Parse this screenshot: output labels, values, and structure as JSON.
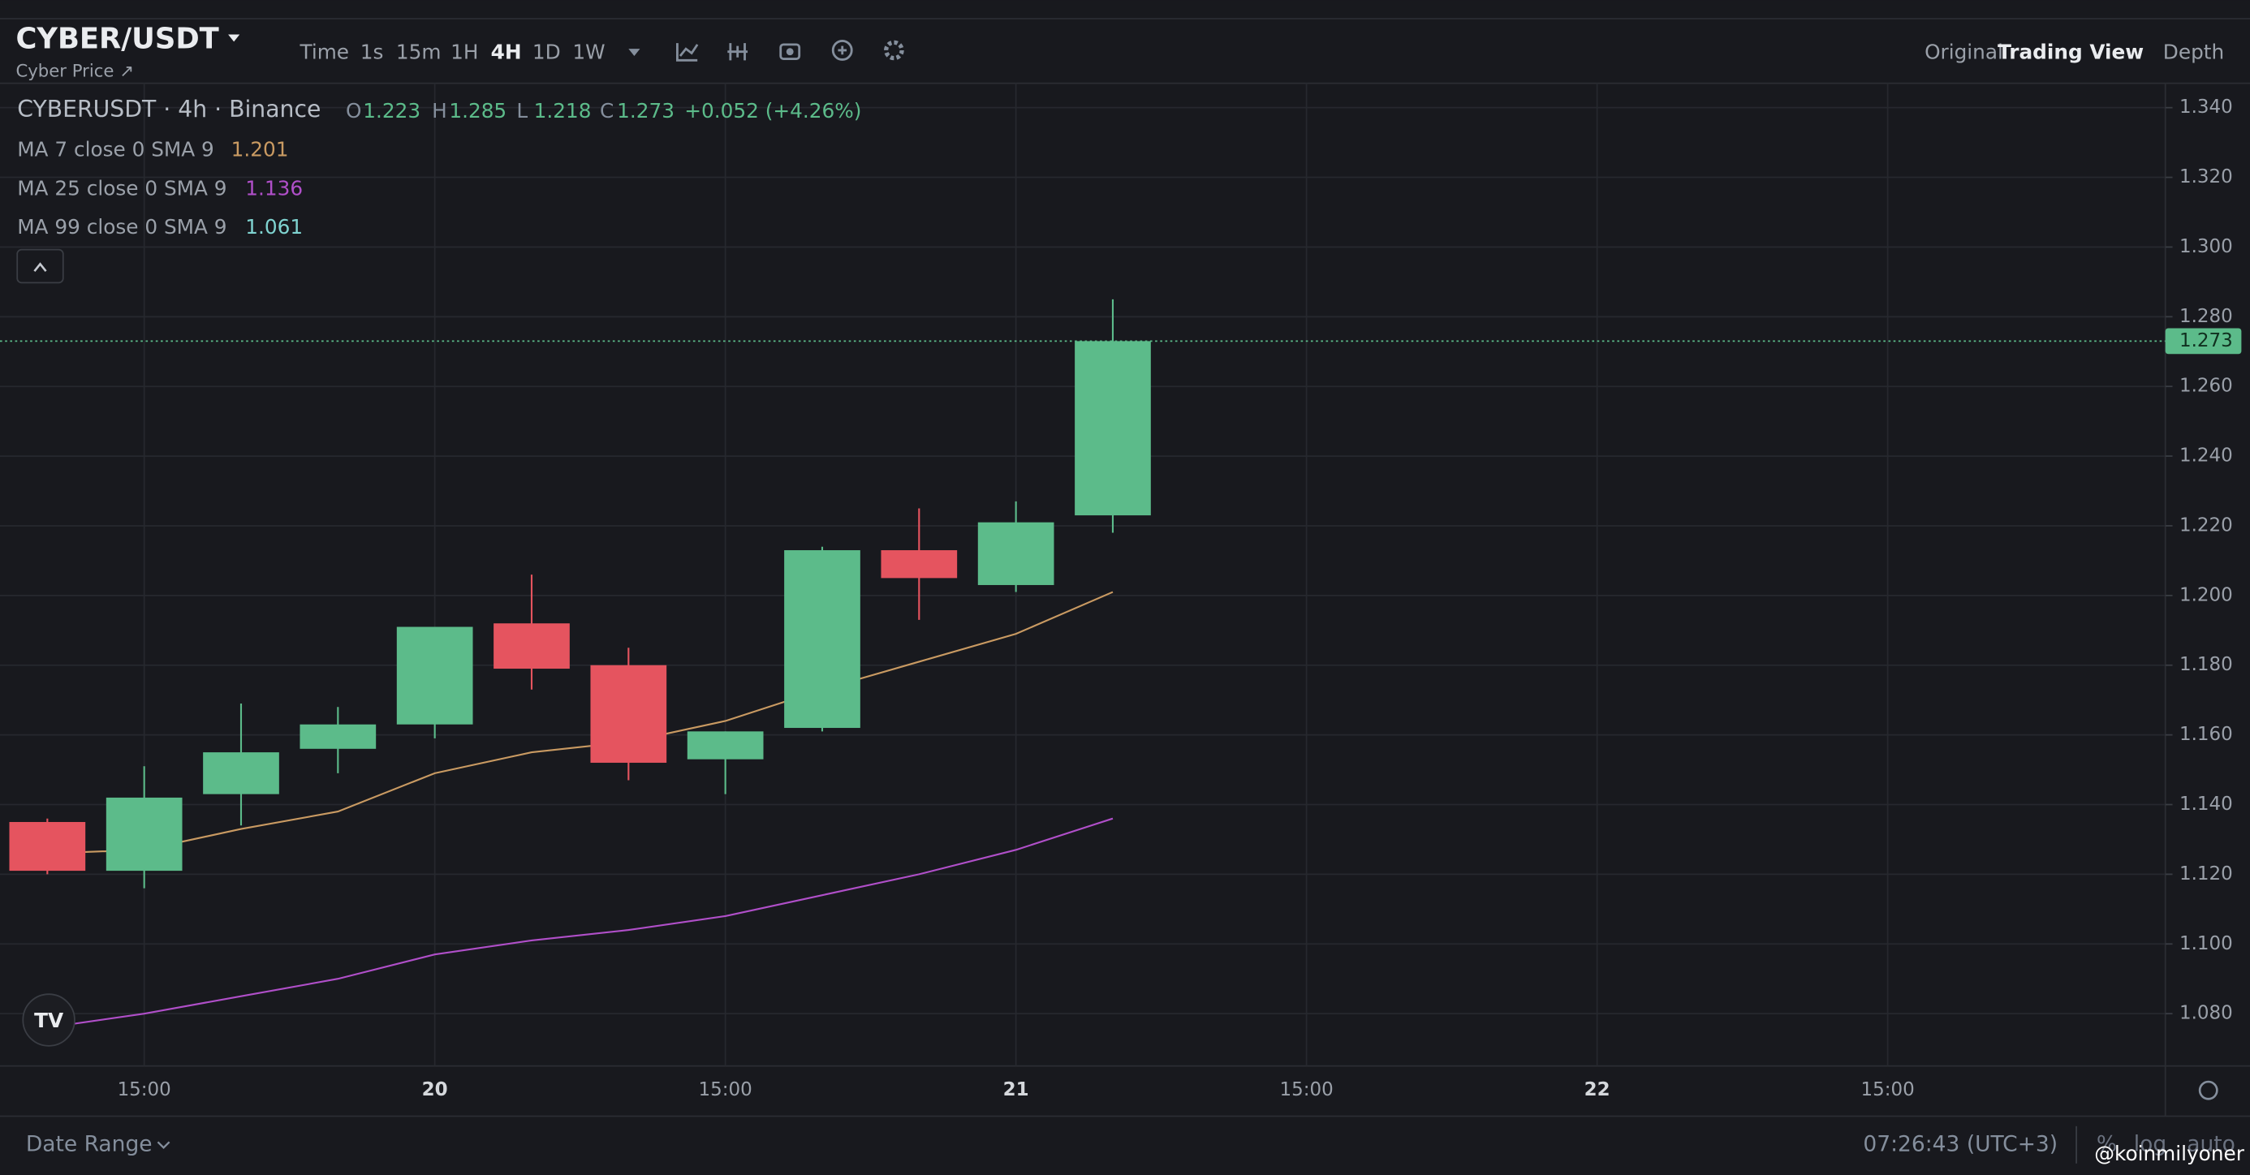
{
  "header": {
    "symbol": "CYBER/USDT",
    "subtitle": "Cyber Price ↗",
    "intervals": [
      "Time",
      "1s",
      "15m",
      "1H",
      "4H",
      "1D",
      "1W"
    ],
    "views": [
      "Original",
      "Trading View",
      "Depth"
    ]
  },
  "chart_data": {
    "type": "candlestick",
    "title": "CYBERUSDT · 4h · Binance",
    "ohlc_labels": [
      "O",
      "H",
      "L",
      "C"
    ],
    "change_label": "+0.052 (+4.26%)",
    "categories": [
      null,
      "15:00",
      null,
      null,
      "20",
      null,
      null,
      "15:00",
      null,
      null,
      "21",
      null,
      null,
      "15:00",
      null,
      null,
      "22",
      null,
      null,
      "15:00"
    ],
    "open": [
      1.135,
      1.121,
      1.143,
      1.156,
      1.163,
      1.192,
      1.18,
      1.153,
      1.162,
      1.213,
      1.203,
      1.223,
      null,
      null,
      null,
      null,
      null,
      null,
      null,
      null
    ],
    "high": [
      1.136,
      1.151,
      1.169,
      1.168,
      1.191,
      1.206,
      1.185,
      1.161,
      1.214,
      1.225,
      1.227,
      1.285,
      null,
      null,
      null,
      null,
      null,
      null,
      null,
      null
    ],
    "low": [
      1.12,
      1.116,
      1.134,
      1.149,
      1.159,
      1.173,
      1.147,
      1.143,
      1.161,
      1.193,
      1.201,
      1.218,
      null,
      null,
      null,
      null,
      null,
      null,
      null,
      null
    ],
    "close": [
      1.121,
      1.142,
      1.155,
      1.163,
      1.191,
      1.179,
      1.152,
      1.161,
      1.213,
      1.205,
      1.221,
      1.273,
      null,
      null,
      null,
      null,
      null,
      null,
      null,
      null
    ],
    "up_color": "#5cbb8a",
    "down_color": "#e5545f",
    "series": [
      {
        "name": "MA 7 close 0 SMA 9",
        "color": "#c99a62",
        "legend_value": 1.201,
        "values": [
          1.126,
          1.127,
          1.133,
          1.138,
          1.149,
          1.155,
          1.158,
          1.164,
          1.173,
          1.181,
          1.189,
          1.201,
          null,
          null,
          null,
          null,
          null,
          null,
          null,
          null
        ]
      },
      {
        "name": "MA 25 close 0 SMA 9",
        "color": "#b04fc9",
        "legend_value": 1.136,
        "values": [
          1.076,
          1.08,
          1.085,
          1.09,
          1.097,
          1.101,
          1.104,
          1.108,
          1.114,
          1.12,
          1.127,
          1.136,
          null,
          null,
          null,
          null,
          null,
          null,
          null,
          null
        ]
      },
      {
        "name": "MA 99 close 0 SMA 9",
        "color": "#7fd3d0",
        "legend_value": 1.061,
        "values": [
          null,
          null,
          null,
          null,
          null,
          null,
          null,
          null,
          null,
          null,
          null,
          null,
          null,
          null,
          null,
          null,
          null,
          null,
          null,
          null
        ]
      }
    ],
    "ylim": [
      1.065,
      1.347
    ],
    "yticks": [
      {
        "value": 1.08,
        "label": "1.080"
      },
      {
        "value": 1.1,
        "label": "1.100"
      },
      {
        "value": 1.12,
        "label": "1.120"
      },
      {
        "value": 1.14,
        "label": "1.140"
      },
      {
        "value": 1.16,
        "label": "1.160"
      },
      {
        "value": 1.18,
        "label": "1.180"
      },
      {
        "value": 1.2,
        "label": "1.200"
      },
      {
        "value": 1.22,
        "label": "1.220"
      },
      {
        "value": 1.24,
        "label": "1.240"
      },
      {
        "value": 1.26,
        "label": "1.260"
      },
      {
        "value": 1.28,
        "label": "1.280"
      },
      {
        "value": 1.3,
        "label": "1.300"
      },
      {
        "value": 1.32,
        "label": "1.320"
      },
      {
        "value": 1.34,
        "label": "1.340"
      }
    ],
    "grid": true
  },
  "footer": {
    "date_range": "Date Range",
    "clock": "07:26:43 (UTC+3)",
    "scale_options": [
      "%",
      "log",
      "auto"
    ],
    "watermark": "@koinmilyoner"
  }
}
